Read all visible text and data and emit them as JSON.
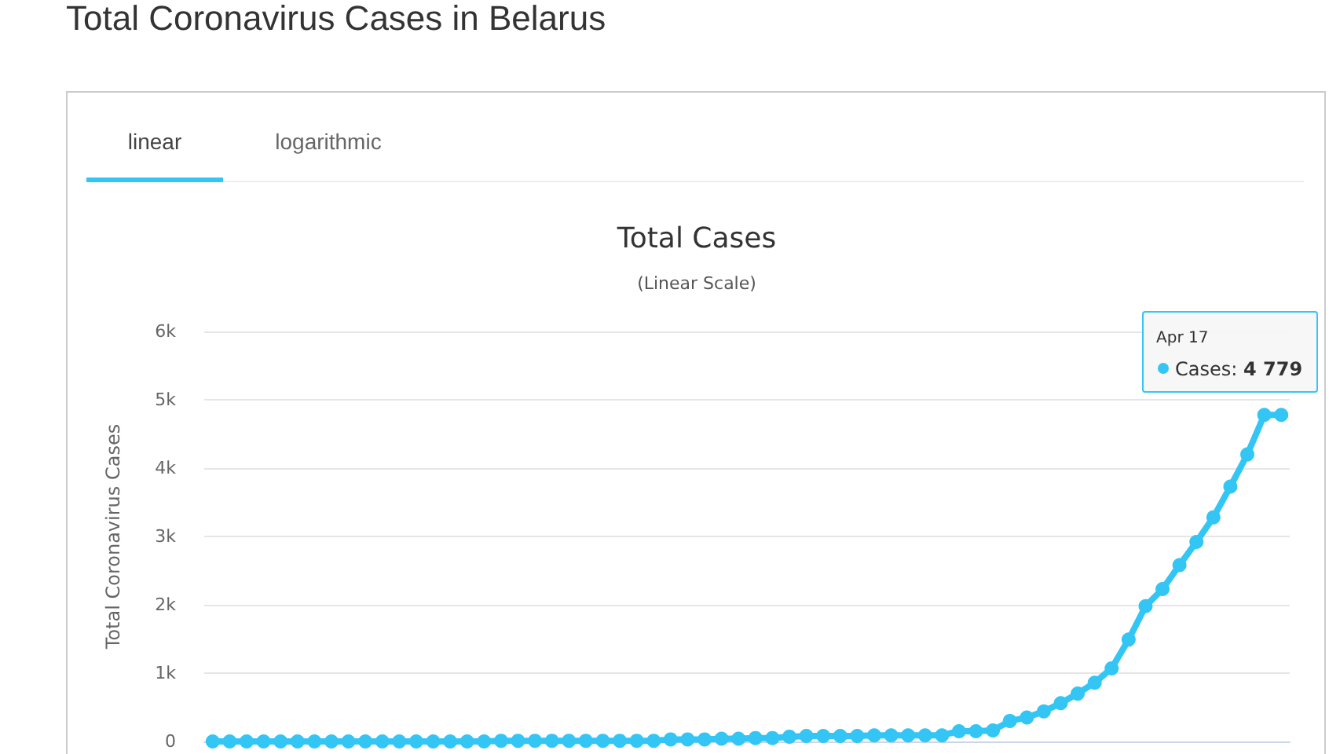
{
  "chart_data": {
    "type": "line",
    "title": "Total Coronavirus Cases in Belarus",
    "subtitle": "Total Cases",
    "ylabel": "Total Coronavirus Cases",
    "annotations": [
      "(Linear Scale)",
      "linear",
      "logarithmic",
      "Apr 17\nCases: 4 779"
    ],
    "categories": [
      null,
      null,
      null,
      null,
      null,
      null,
      null,
      null,
      null,
      null,
      null,
      null,
      null,
      null,
      null,
      null,
      null,
      null,
      null,
      null,
      null,
      null,
      null,
      null,
      null,
      null,
      null,
      null,
      null,
      null,
      null,
      null,
      null,
      null,
      null,
      null,
      null,
      null,
      null,
      null,
      null,
      null,
      null,
      null,
      null,
      null,
      null,
      null,
      null,
      null,
      null,
      null,
      null,
      null,
      null,
      null,
      null,
      null,
      null,
      null,
      null,
      null,
      null,
      null
    ],
    "series": [
      {
        "color": "#33c6f4",
        "values": [
          0,
          0,
          0,
          0,
          0,
          0,
          0,
          0,
          0,
          0,
          0,
          0,
          0,
          0,
          0,
          0,
          0,
          10,
          10,
          10,
          10,
          10,
          10,
          10,
          10,
          10,
          10,
          30,
          30,
          30,
          40,
          40,
          50,
          50,
          70,
          80,
          80,
          80,
          80,
          90,
          90,
          90,
          90,
          90,
          150,
          150,
          160,
          300,
          350,
          440,
          560,
          700,
          860,
          1070,
          1490,
          1980,
          2230,
          2580,
          2920,
          3280,
          3730,
          4200,
          4779,
          4779
        ]
      }
    ],
    "ylim": [
      0,
      6000
    ],
    "yticks": [
      0,
      {
        "value": 1000,
        "label": "1k"
      },
      {
        "value": 2000,
        "label": "2k"
      },
      {
        "value": 3000,
        "label": "3k"
      },
      {
        "value": 4000,
        "label": "4k"
      },
      {
        "value": 5000,
        "label": "5k"
      },
      {
        "value": 6000,
        "label": "6k"
      }
    ],
    "grid": "y",
    "marker": "circle",
    "line_style": "solid"
  }
}
